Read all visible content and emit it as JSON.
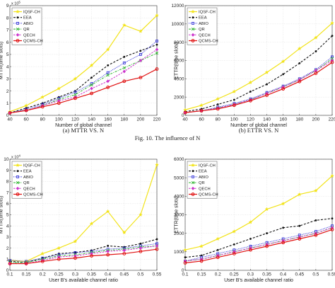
{
  "figure": {
    "caption": "Fig. 10. The influence of N"
  },
  "colors": {
    "IQSF-CH": "#f2e318",
    "EEA": "#111111",
    "ABIO": "#2b2bd6",
    "QR": "#2fb52f",
    "QECH": "#cc33cc",
    "QCMS-CH": "#e01010"
  },
  "chart_data": [
    {
      "type": "line",
      "id": "p1",
      "caption": "(a) MTTR VS. N",
      "xlabel": "Number of global channel",
      "ylabel": "MTTR(time slots)",
      "y_exponent": "x 10^5",
      "xlim": [
        40,
        220
      ],
      "ylim": [
        0,
        9
      ],
      "xticks": [
        40,
        60,
        80,
        100,
        120,
        140,
        160,
        180,
        200,
        220
      ],
      "yticks": [
        0,
        1,
        2,
        3,
        4,
        5,
        6,
        7,
        8,
        9
      ],
      "legend": "top-left",
      "x": [
        40,
        60,
        80,
        100,
        120,
        140,
        160,
        180,
        200,
        220
      ],
      "series": [
        {
          "name": "IQSF-CH",
          "values": [
            0.3,
            0.8,
            1.5,
            2.2,
            3.0,
            4.1,
            5.4,
            7.4,
            6.9,
            8.2
          ]
        },
        {
          "name": "EEA",
          "values": [
            0.2,
            0.6,
            1.0,
            1.5,
            2.0,
            3.1,
            4.1,
            4.8,
            5.3,
            5.8
          ]
        },
        {
          "name": "ABIO",
          "values": [
            0.2,
            0.5,
            0.9,
            1.4,
            1.9,
            2.6,
            3.5,
            4.3,
            5.0,
            6.1
          ]
        },
        {
          "name": "QR",
          "values": [
            0.2,
            0.4,
            0.8,
            1.3,
            1.7,
            2.5,
            3.3,
            3.9,
            4.5,
            5.1
          ]
        },
        {
          "name": "QECH",
          "values": [
            0.2,
            0.4,
            0.8,
            1.2,
            1.5,
            2.2,
            2.8,
            3.6,
            4.5,
            5.4
          ]
        },
        {
          "name": "QCMS-CH",
          "values": [
            0.2,
            0.4,
            0.7,
            1.0,
            1.4,
            1.8,
            2.3,
            2.8,
            3.1,
            3.8
          ]
        }
      ]
    },
    {
      "type": "line",
      "id": "p2",
      "caption": "(b) ETTR VS. N",
      "xlabel": "Number of global channel",
      "ylabel": "ETTR(time slots)",
      "y_exponent": "",
      "xlim": [
        40,
        220
      ],
      "ylim": [
        0,
        12000
      ],
      "xticks": [
        40,
        60,
        80,
        100,
        120,
        140,
        160,
        180,
        200,
        220
      ],
      "yticks": [
        0,
        2000,
        4000,
        6000,
        8000,
        10000,
        12000
      ],
      "legend": "top-left",
      "x": [
        40,
        60,
        80,
        100,
        120,
        140,
        160,
        180,
        200,
        220
      ],
      "series": [
        {
          "name": "IQSF-CH",
          "values": [
            600,
            1100,
            1800,
            2600,
            3600,
            4700,
            5900,
            7300,
            8500,
            10100
          ]
        },
        {
          "name": "EEA",
          "values": [
            400,
            700,
            1200,
            1700,
            2600,
            3400,
            4500,
            5700,
            7000,
            8700
          ]
        },
        {
          "name": "ABIO",
          "values": [
            300,
            500,
            900,
            1300,
            1800,
            2500,
            3200,
            4000,
            5000,
            6400
          ]
        },
        {
          "name": "QR",
          "values": [
            300,
            500,
            800,
            1200,
            1700,
            2400,
            3100,
            3900,
            4900,
            6200
          ]
        },
        {
          "name": "QECH",
          "values": [
            300,
            500,
            800,
            1200,
            1700,
            2400,
            3100,
            3900,
            4900,
            6000
          ]
        },
        {
          "name": "QCMS-CH",
          "values": [
            300,
            500,
            700,
            1100,
            1600,
            2200,
            2900,
            3700,
            4600,
            5800
          ]
        }
      ]
    },
    {
      "type": "line",
      "id": "p3",
      "caption": "",
      "xlabel": "User B's available channel ratio",
      "ylabel": "MTTR(time slots)",
      "y_exponent": "x 10^4",
      "xlim": [
        0.1,
        0.55
      ],
      "ylim": [
        0,
        10
      ],
      "xticks": [
        0.1,
        0.15,
        0.2,
        0.25,
        0.3,
        0.35,
        0.4,
        0.45,
        0.5,
        0.55
      ],
      "yticks": [
        0,
        1,
        2,
        3,
        4,
        5,
        6,
        7,
        8,
        9,
        10
      ],
      "legend": "top-left",
      "x": [
        0.1,
        0.15,
        0.2,
        0.25,
        0.3,
        0.35,
        0.4,
        0.45,
        0.5,
        0.55
      ],
      "series": [
        {
          "name": "IQSF-CH",
          "values": [
            0.9,
            0.8,
            1.5,
            2.0,
            2.6,
            4.2,
            5.3,
            3.4,
            5.0,
            9.5
          ]
        },
        {
          "name": "EEA",
          "values": [
            0.8,
            0.7,
            1.1,
            1.5,
            1.6,
            1.8,
            2.2,
            2.1,
            2.4,
            2.8
          ]
        },
        {
          "name": "ABIO",
          "values": [
            0.9,
            0.8,
            1.1,
            1.4,
            1.6,
            1.7,
            1.9,
            2.0,
            2.2,
            2.4
          ]
        },
        {
          "name": "QR",
          "values": [
            0.7,
            0.7,
            1.0,
            1.3,
            1.4,
            1.6,
            1.8,
            1.9,
            2.1,
            2.2
          ]
        },
        {
          "name": "QECH",
          "values": [
            0.6,
            0.6,
            0.9,
            1.2,
            1.3,
            1.5,
            1.7,
            1.8,
            2.0,
            2.2
          ]
        },
        {
          "name": "QCMS-CH",
          "values": [
            0.6,
            0.6,
            0.8,
            1.0,
            1.1,
            1.3,
            1.4,
            1.5,
            1.7,
            1.9
          ]
        }
      ]
    },
    {
      "type": "line",
      "id": "p4",
      "caption": "",
      "xlabel": "User B's available channel ratio",
      "ylabel": "ETTR(time slots)",
      "y_exponent": "",
      "xlim": [
        0.1,
        0.55
      ],
      "ylim": [
        0,
        6000
      ],
      "xticks": [
        0.1,
        0.15,
        0.2,
        0.25,
        0.3,
        0.35,
        0.4,
        0.45,
        0.5,
        0.55
      ],
      "yticks": [
        0,
        1000,
        2000,
        3000,
        4000,
        5000,
        6000
      ],
      "legend": "top-left",
      "x": [
        0.1,
        0.15,
        0.2,
        0.25,
        0.3,
        0.35,
        0.4,
        0.45,
        0.5,
        0.55
      ],
      "series": [
        {
          "name": "IQSF-CH",
          "values": [
            1100,
            1300,
            1700,
            2100,
            2600,
            3300,
            3600,
            4100,
            4300,
            5100
          ]
        },
        {
          "name": "EEA",
          "values": [
            700,
            800,
            1100,
            1400,
            1700,
            2000,
            2300,
            2400,
            2700,
            2800
          ]
        },
        {
          "name": "ABIO",
          "values": [
            500,
            700,
            900,
            1100,
            1300,
            1500,
            1700,
            1900,
            2100,
            2400
          ]
        },
        {
          "name": "QR",
          "values": [
            500,
            600,
            800,
            1000,
            1200,
            1400,
            1600,
            1800,
            2000,
            2300
          ]
        },
        {
          "name": "QECH",
          "values": [
            500,
            600,
            800,
            1000,
            1200,
            1400,
            1600,
            1800,
            2000,
            2300
          ]
        },
        {
          "name": "QCMS-CH",
          "values": [
            400,
            500,
            700,
            900,
            1100,
            1300,
            1500,
            1700,
            1900,
            2200
          ]
        }
      ]
    }
  ]
}
